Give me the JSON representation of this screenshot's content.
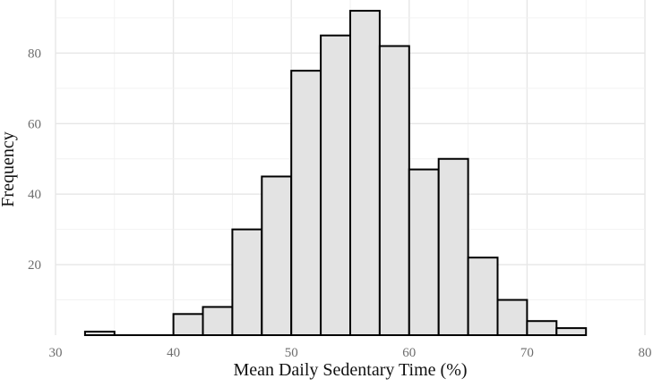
{
  "chart_data": {
    "type": "bar",
    "subtype": "histogram",
    "title": "",
    "xlabel": "Mean Daily Sedentary Time (%)",
    "ylabel": "Frequency",
    "xlim": [
      30,
      80
    ],
    "ylim": [
      0,
      92
    ],
    "x_ticks": [
      30,
      40,
      50,
      60,
      70,
      80
    ],
    "y_ticks": [
      20,
      40,
      60,
      80
    ],
    "grid": true,
    "legend": "none",
    "bin_width": 2.5,
    "bins": [
      {
        "x0": 32.5,
        "x1": 35.0,
        "count": 1
      },
      {
        "x0": 35.0,
        "x1": 37.5,
        "count": 0
      },
      {
        "x0": 37.5,
        "x1": 40.0,
        "count": 0
      },
      {
        "x0": 40.0,
        "x1": 42.5,
        "count": 6
      },
      {
        "x0": 42.5,
        "x1": 45.0,
        "count": 8
      },
      {
        "x0": 45.0,
        "x1": 47.5,
        "count": 30
      },
      {
        "x0": 47.5,
        "x1": 50.0,
        "count": 45
      },
      {
        "x0": 50.0,
        "x1": 52.5,
        "count": 75
      },
      {
        "x0": 52.5,
        "x1": 55.0,
        "count": 85
      },
      {
        "x0": 55.0,
        "x1": 57.5,
        "count": 92
      },
      {
        "x0": 57.5,
        "x1": 60.0,
        "count": 82
      },
      {
        "x0": 60.0,
        "x1": 62.5,
        "count": 47
      },
      {
        "x0": 62.5,
        "x1": 65.0,
        "count": 50
      },
      {
        "x0": 65.0,
        "x1": 67.5,
        "count": 22
      },
      {
        "x0": 67.5,
        "x1": 70.0,
        "count": 10
      },
      {
        "x0": 70.0,
        "x1": 72.5,
        "count": 4
      },
      {
        "x0": 72.5,
        "x1": 75.0,
        "count": 2
      }
    ],
    "colors": {
      "bar_fill": "#e3e3e3",
      "bar_stroke": "#000000"
    }
  }
}
